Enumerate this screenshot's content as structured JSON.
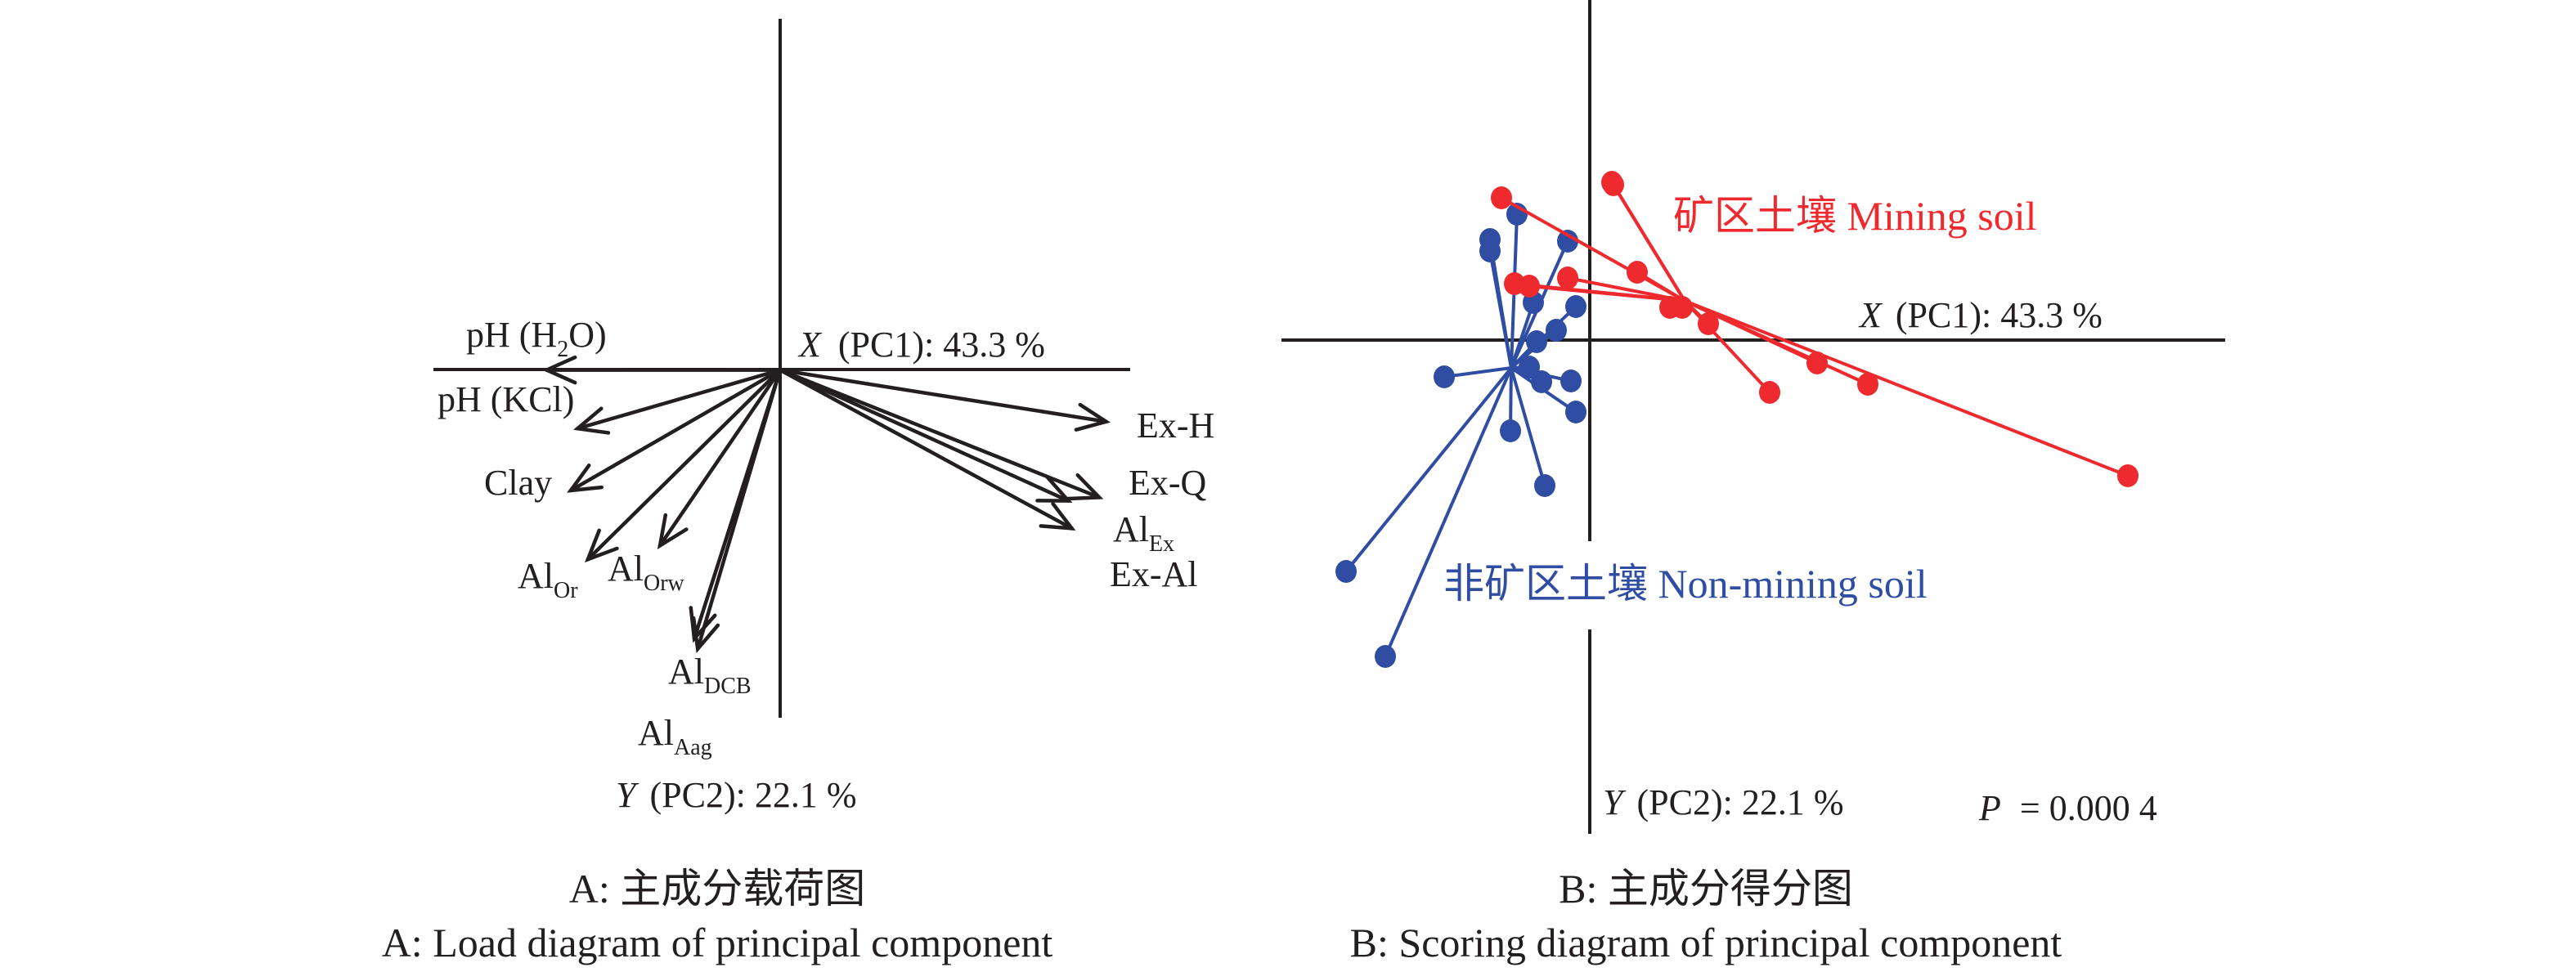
{
  "colors": {
    "axis": "#231f20",
    "mining": "#ee2a2e",
    "non_mining": "#2f4ea3"
  },
  "chart_data": [
    {
      "type": "biplot-loadings",
      "panel": "A",
      "title_cn": "A: 主成分载荷图",
      "title_en": "A: Load diagram of principal component",
      "x_axis": {
        "italic_var": "X",
        "label": "(PC1): 43.3 %"
      },
      "y_axis": {
        "italic_var": "Y",
        "label": "(PC2): 22.1 %"
      },
      "xlim": [
        -1.01,
        1.02
      ],
      "ylim": [
        -1.01,
        1.02
      ],
      "loadings": [
        {
          "name": "pH (H",
          "sub": "2",
          "tail": "O)",
          "pc1": -0.68,
          "pc2": 0.0
        },
        {
          "name": "pH (KCl)",
          "sub": "",
          "tail": "",
          "pc1": -0.59,
          "pc2": -0.17
        },
        {
          "name": "Clay",
          "sub": "",
          "tail": "",
          "pc1": -0.61,
          "pc2": -0.35
        },
        {
          "name": "Al",
          "sub": "Or",
          "tail": "",
          "pc1": -0.56,
          "pc2": -0.55
        },
        {
          "name": "Al",
          "sub": "Orw",
          "tail": "",
          "pc1": -0.35,
          "pc2": -0.51
        },
        {
          "name": "Al",
          "sub": "DCB",
          "tail": "",
          "pc1": -0.25,
          "pc2": -0.78
        },
        {
          "name": "Al",
          "sub": "Aag",
          "tail": "",
          "pc1": -0.24,
          "pc2": -0.81
        },
        {
          "name": "Ex-H",
          "sub": "",
          "tail": "",
          "pc1": 0.95,
          "pc2": -0.15
        },
        {
          "name": "Ex-Q",
          "sub": "",
          "tail": "",
          "pc1": 0.93,
          "pc2": -0.37
        },
        {
          "name": "Al",
          "sub": "Ex",
          "tail": "",
          "pc1": 0.84,
          "pc2": -0.38
        },
        {
          "name": "Ex-Al",
          "sub": "",
          "tail": "",
          "pc1": 0.85,
          "pc2": -0.46
        }
      ]
    },
    {
      "type": "scatter",
      "panel": "B",
      "title_cn": "B: 主成分得分图",
      "title_en": "B: Scoring diagram of principal component",
      "x_axis": {
        "italic_var": "X",
        "label": "(PC1): 43.3 %"
      },
      "y_axis": {
        "italic_var": "Y",
        "label": "(PC2): 22.1 %"
      },
      "xlim": [
        -3.77,
        7.77
      ],
      "ylim": [
        -6.04,
        4.16
      ],
      "annotation": {
        "italic_var": "P",
        "text": "= 0.000 4"
      },
      "series": [
        {
          "name": "矿区土壤 Mining soil",
          "color": "#ee2a2e",
          "centroid": [
            1.16,
            0.48
          ],
          "points": [
            [
              -1.08,
              1.74
            ],
            [
              0.27,
              1.93
            ],
            [
              0.29,
              1.9
            ],
            [
              0.58,
              0.83
            ],
            [
              -0.27,
              0.76
            ],
            [
              -0.92,
              0.69
            ],
            [
              -0.74,
              0.66
            ],
            [
              0.98,
              0.4
            ],
            [
              1.13,
              0.4
            ],
            [
              1.45,
              0.2
            ],
            [
              2.78,
              -0.28
            ],
            [
              2.2,
              -0.64
            ],
            [
              3.4,
              -0.54
            ],
            [
              6.58,
              -1.66
            ]
          ]
        },
        {
          "name": "非矿区土壤 Non-mining soil",
          "color": "#2f4ea3",
          "centroid": [
            -0.96,
            -0.34
          ],
          "points": [
            [
              -0.89,
              1.54
            ],
            [
              -1.22,
              1.23
            ],
            [
              -1.22,
              1.09
            ],
            [
              -0.27,
              1.21
            ],
            [
              -0.69,
              0.46
            ],
            [
              -0.17,
              0.41
            ],
            [
              -0.41,
              0.12
            ],
            [
              -0.65,
              -0.02
            ],
            [
              -1.78,
              -0.45
            ],
            [
              -0.74,
              -0.33
            ],
            [
              -0.59,
              -0.51
            ],
            [
              -0.23,
              -0.5
            ],
            [
              -0.17,
              -0.88
            ],
            [
              -0.97,
              -1.11
            ],
            [
              -0.55,
              -1.78
            ],
            [
              -2.98,
              -2.83
            ],
            [
              -2.5,
              -3.87
            ]
          ]
        }
      ]
    }
  ]
}
